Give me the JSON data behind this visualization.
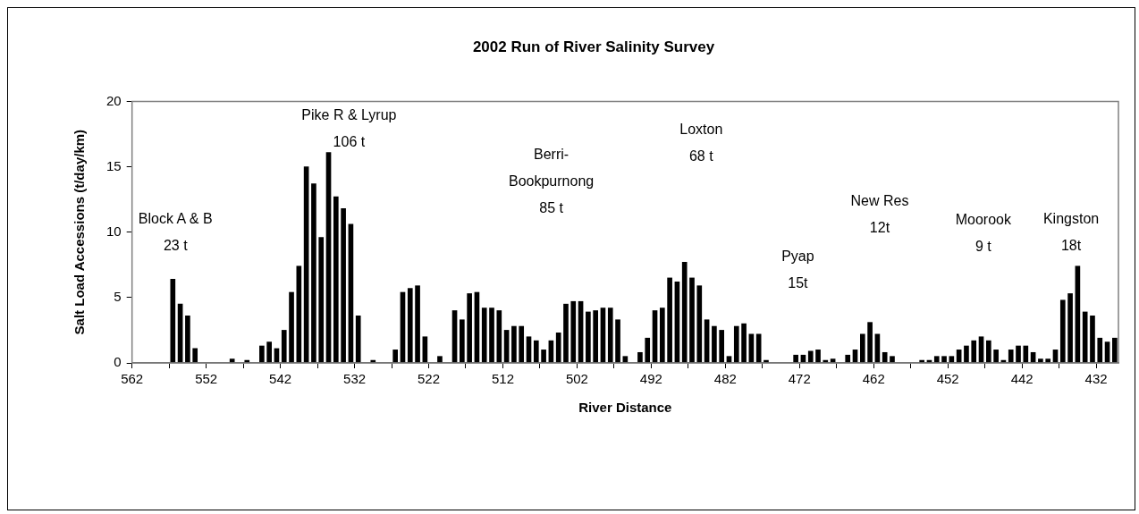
{
  "chart_data": {
    "type": "bar",
    "title": "2002 Run of River Salinity Survey",
    "xlabel": "River Distance",
    "ylabel": "Salt Load Accessions (t/day/km)",
    "x": [
      556.5,
      555.5,
      554.5,
      553.5,
      548.5,
      546.5,
      544.5,
      543.5,
      542.5,
      541.5,
      540.5,
      539.5,
      538.5,
      537.5,
      536.5,
      535.5,
      534.5,
      533.5,
      532.5,
      531.5,
      529.5,
      526.5,
      525.5,
      524.5,
      523.5,
      522.5,
      520.5,
      518.5,
      517.5,
      516.5,
      515.5,
      514.5,
      513.5,
      512.5,
      511.5,
      510.5,
      509.5,
      508.5,
      507.5,
      506.5,
      505.5,
      504.5,
      503.5,
      502.5,
      501.5,
      500.5,
      499.5,
      498.5,
      497.5,
      496.5,
      495.5,
      493.5,
      492.5,
      491.5,
      490.5,
      489.5,
      488.5,
      487.5,
      486.5,
      485.5,
      484.5,
      483.5,
      482.5,
      481.5,
      480.5,
      479.5,
      478.5,
      477.5,
      476.5,
      472.5,
      471.5,
      470.5,
      469.5,
      468.5,
      467.5,
      465.5,
      464.5,
      463.5,
      462.5,
      461.5,
      460.5,
      459.5,
      455.5,
      454.5,
      453.5,
      452.5,
      451.5,
      450.5,
      449.5,
      448.5,
      447.5,
      446.5,
      445.5,
      444.5,
      443.5,
      442.5,
      441.5,
      440.5,
      439.5,
      438.5,
      437.5,
      436.5,
      435.5,
      434.5,
      433.5,
      432.5,
      431.5,
      430.5,
      429.5
    ],
    "values": [
      6.4,
      4.5,
      3.6,
      1.1,
      0.3,
      0.2,
      1.3,
      1.6,
      1.1,
      2.5,
      5.4,
      7.4,
      15.0,
      13.7,
      9.6,
      16.1,
      12.7,
      11.8,
      10.6,
      3.6,
      0.2,
      1.0,
      5.4,
      5.7,
      5.9,
      2.0,
      0.5,
      4.0,
      3.3,
      5.3,
      5.4,
      4.2,
      4.2,
      4.0,
      2.5,
      2.8,
      2.8,
      2.0,
      1.7,
      1.0,
      1.7,
      2.3,
      4.5,
      4.7,
      4.7,
      3.9,
      4.0,
      4.2,
      4.2,
      3.3,
      0.5,
      0.8,
      1.9,
      4.0,
      4.2,
      6.5,
      6.2,
      7.7,
      6.5,
      5.9,
      3.3,
      2.8,
      2.5,
      0.5,
      2.8,
      3.0,
      2.2,
      2.2,
      0.2,
      0.6,
      0.6,
      0.9,
      1.0,
      0.2,
      0.3,
      0.6,
      1.0,
      2.2,
      3.1,
      2.2,
      0.8,
      0.5,
      0.2,
      0.2,
      0.5,
      0.5,
      0.5,
      1.0,
      1.3,
      1.7,
      2.0,
      1.7,
      1.0,
      0.2,
      1.0,
      1.3,
      1.3,
      0.8,
      0.3,
      0.3,
      1.0,
      4.8,
      5.3,
      7.4,
      3.9,
      3.6,
      1.9,
      1.6,
      1.9
    ],
    "color": "#000000",
    "xlim": [
      562,
      429
    ],
    "xticks": [
      562,
      {
        "value": 557,
        "label": null
      },
      552,
      {
        "value": 547,
        "label": null
      },
      542,
      {
        "value": 537,
        "label": null
      },
      532,
      {
        "value": 527,
        "label": null
      },
      522,
      {
        "value": 517,
        "label": null
      },
      512,
      {
        "value": 507,
        "label": null
      },
      502,
      {
        "value": 497,
        "label": null
      },
      492,
      {
        "value": 487,
        "label": null
      },
      482,
      {
        "value": 477,
        "label": null
      },
      472,
      {
        "value": 467,
        "label": null
      },
      462,
      {
        "value": 457,
        "label": null
      },
      452,
      {
        "value": 447,
        "label": null
      },
      442,
      {
        "value": 437,
        "label": null
      },
      432
    ],
    "ylim": [
      0,
      20
    ],
    "yticks": [
      0,
      5,
      10,
      15,
      20
    ],
    "grid": false,
    "legend": false,
    "annotations": [
      "Block A & B\n23 t",
      "Pike R & Lyrup\n106 t",
      "Berri-\nBookpurnong\n85 t",
      "Loxton\n68 t",
      "Pyap\n15t",
      "New Res\n12t",
      "Moorook\n9 t",
      "Kingston\n18t"
    ]
  }
}
